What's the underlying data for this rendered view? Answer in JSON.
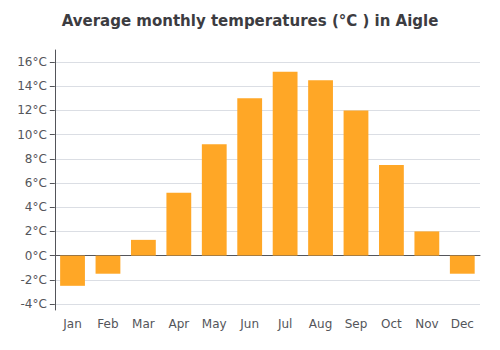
{
  "chart_data": {
    "type": "bar",
    "title": "Average monthly temperatures (°C ) in Aigle",
    "categories": [
      "Jan",
      "Feb",
      "Mar",
      "Apr",
      "May",
      "Jun",
      "Jul",
      "Aug",
      "Sep",
      "Oct",
      "Nov",
      "Dec"
    ],
    "values": [
      -2.5,
      -1.5,
      1.3,
      5.2,
      9.2,
      13.0,
      15.2,
      14.5,
      12.0,
      7.5,
      2.0,
      -1.5
    ],
    "color": "#FFA726",
    "ylim": [
      -4.5,
      17.0
    ],
    "yticks": [
      {
        "value": -4,
        "label": "-4°C"
      },
      {
        "value": -2,
        "label": "-2°C"
      },
      {
        "value": 0,
        "label": "0°C"
      },
      {
        "value": 2,
        "label": "2°C"
      },
      {
        "value": 4,
        "label": "4°C"
      },
      {
        "value": 6,
        "label": "6°C"
      },
      {
        "value": 8,
        "label": "8°C"
      },
      {
        "value": 10,
        "label": "10°C"
      },
      {
        "value": 12,
        "label": "12°C"
      },
      {
        "value": 14,
        "label": "14°C"
      },
      {
        "value": 16,
        "label": "16°C"
      }
    ],
    "grid": true
  }
}
